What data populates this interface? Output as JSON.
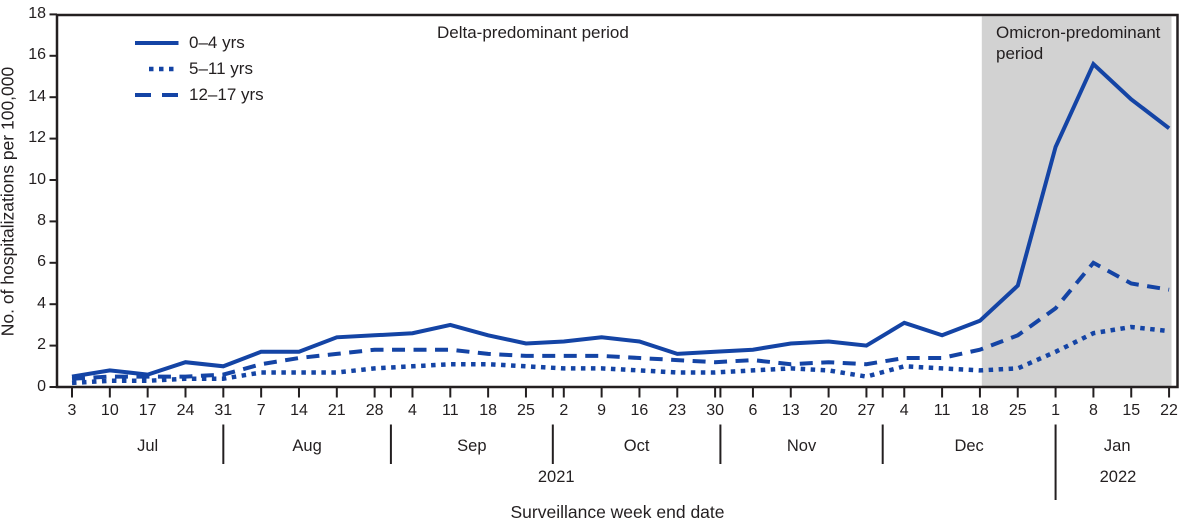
{
  "figure": {
    "y_axis_title": "No. of hospitalizations per 100,000",
    "x_axis_title": "Surveillance week end date",
    "annotations": {
      "delta": "Delta-predominant period",
      "omicron": "Omicron-predominant period"
    }
  },
  "legend": [
    {
      "label": "0–4 yrs",
      "style": "solid"
    },
    {
      "label": "5–11 yrs",
      "style": "dotted"
    },
    {
      "label": "12–17 yrs",
      "style": "dashed"
    }
  ],
  "colors": {
    "line_blue": "#1444A5",
    "shade_gray": "#D2D2D2",
    "axis_black": "#231F20",
    "text": "#231F20",
    "background": "#FFFFFF"
  },
  "chart_data": {
    "type": "line",
    "title": "",
    "xlabel": "Surveillance week end date",
    "ylabel": "No. of hospitalizations per 100,000",
    "ylim": [
      0,
      18
    ],
    "yticks": [
      0,
      2,
      4,
      6,
      8,
      10,
      12,
      14,
      16,
      18
    ],
    "grid": false,
    "legend_position": "top-left-inside",
    "x_tick_labels": [
      "3",
      "10",
      "17",
      "24",
      "31",
      "7",
      "14",
      "21",
      "28",
      "4",
      "11",
      "18",
      "25",
      "2",
      "9",
      "16",
      "23",
      "30",
      "6",
      "13",
      "20",
      "27",
      "4",
      "11",
      "18",
      "25",
      "1",
      "8",
      "15",
      "22"
    ],
    "months": [
      {
        "label": "Jul",
        "start_index": 0,
        "end_index": 4
      },
      {
        "label": "Aug",
        "start_index": 4,
        "end_index": 8.43
      },
      {
        "label": "Sep",
        "start_index": 8.43,
        "end_index": 12.71
      },
      {
        "label": "Oct",
        "start_index": 12.71,
        "end_index": 17.14
      },
      {
        "label": "Nov",
        "start_index": 17.14,
        "end_index": 21.43
      },
      {
        "label": "Dec",
        "start_index": 21.43,
        "end_index": 26
      },
      {
        "label": "Jan",
        "start_index": 26,
        "end_index": 29.26
      }
    ],
    "month_boundaries": [
      4,
      8.43,
      12.71,
      17.14,
      21.43,
      26
    ],
    "year_boundary_index": 26,
    "years": [
      {
        "label": "2021",
        "center_index": 12.8
      },
      {
        "label": "2022",
        "center_index": 27.65
      }
    ],
    "shaded_region": {
      "label": "Omicron-predominant period",
      "start_label": "Dec 18",
      "start_index": 24.05,
      "end_index": 29.26
    },
    "delta_region_label": "Delta-predominant period",
    "series": [
      {
        "name": "0–4 yrs",
        "style": "solid",
        "values": [
          0.5,
          0.8,
          0.6,
          1.2,
          1.0,
          1.7,
          1.7,
          2.4,
          2.5,
          2.6,
          3.0,
          2.5,
          2.1,
          2.2,
          2.4,
          2.2,
          1.6,
          1.7,
          1.8,
          2.1,
          2.2,
          2.0,
          3.1,
          2.5,
          3.2,
          4.9,
          11.6,
          15.6,
          13.9,
          12.5
        ]
      },
      {
        "name": "5–11 yrs",
        "style": "dotted",
        "values": [
          0.2,
          0.3,
          0.3,
          0.4,
          0.4,
          0.7,
          0.7,
          0.7,
          0.9,
          1.0,
          1.1,
          1.1,
          1.0,
          0.9,
          0.9,
          0.8,
          0.7,
          0.7,
          0.8,
          0.9,
          0.8,
          0.5,
          1.0,
          0.9,
          0.8,
          0.9,
          1.7,
          2.6,
          2.9,
          2.7
        ]
      },
      {
        "name": "12–17 yrs",
        "style": "dashed",
        "values": [
          0.4,
          0.5,
          0.5,
          0.5,
          0.6,
          1.1,
          1.4,
          1.6,
          1.8,
          1.8,
          1.8,
          1.6,
          1.5,
          1.5,
          1.5,
          1.4,
          1.3,
          1.2,
          1.3,
          1.1,
          1.2,
          1.1,
          1.4,
          1.4,
          1.8,
          2.5,
          3.8,
          6.0,
          5.0,
          4.7
        ]
      }
    ]
  }
}
